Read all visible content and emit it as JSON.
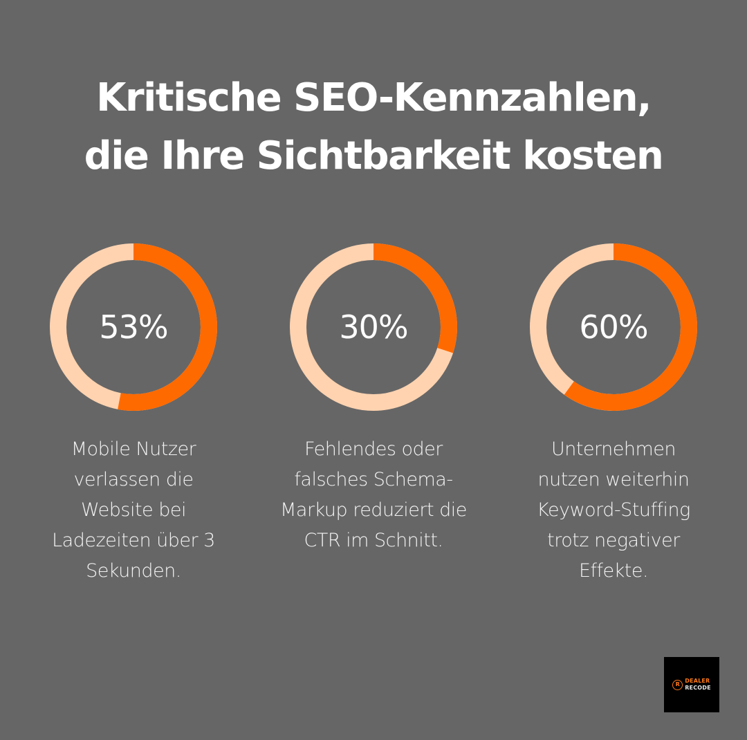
{
  "title": {
    "line1": "Kritische SEO-Kennzahlen,",
    "line2": "die Ihre Sichtbarkeit kosten"
  },
  "colors": {
    "background": "#666666",
    "accent": "#FF6A00",
    "ring_track": "#FFD3B0",
    "text": "#FFFFFF"
  },
  "stats": [
    {
      "value": 53,
      "label": "53%",
      "description_lines": [
        "Mobile Nutzer",
        "verlassen die",
        "Website bei",
        "Ladezeiten über 3",
        "Sekunden."
      ]
    },
    {
      "value": 30,
      "label": "30%",
      "description_lines": [
        "Fehlendes oder",
        "falsches Schema-",
        "Markup reduziert die",
        "CTR im Schnitt."
      ]
    },
    {
      "value": 60,
      "label": "60%",
      "description_lines": [
        "Unternehmen",
        "nutzen weiterhin",
        "Keyword-Stuffing",
        "trotz negativer",
        "Effekte."
      ]
    }
  ],
  "logo": {
    "mark": "R",
    "line1": "DEALER",
    "line2": "RECODE"
  },
  "chart_data": {
    "type": "pie",
    "subtype": "donut",
    "title": "Kritische SEO-Kennzahlen, die Ihre Sichtbarkeit kosten",
    "categories": [
      "Mobile Nutzer verlassen die Website bei Ladezeiten über 3 Sekunden.",
      "Fehlendes oder falsches Schema-Markup reduziert die CTR im Schnitt.",
      "Unternehmen nutzen weiterhin Keyword-Stuffing trotz negativer Effekte."
    ],
    "values": [
      53,
      30,
      60
    ],
    "unit": "%",
    "max": 100,
    "series": [
      {
        "name": "value",
        "color": "#FF6A00",
        "values": [
          53,
          30,
          60
        ]
      },
      {
        "name": "remainder",
        "color": "#FFD3B0",
        "values": [
          47,
          70,
          40
        ]
      }
    ],
    "legend": "none"
  }
}
